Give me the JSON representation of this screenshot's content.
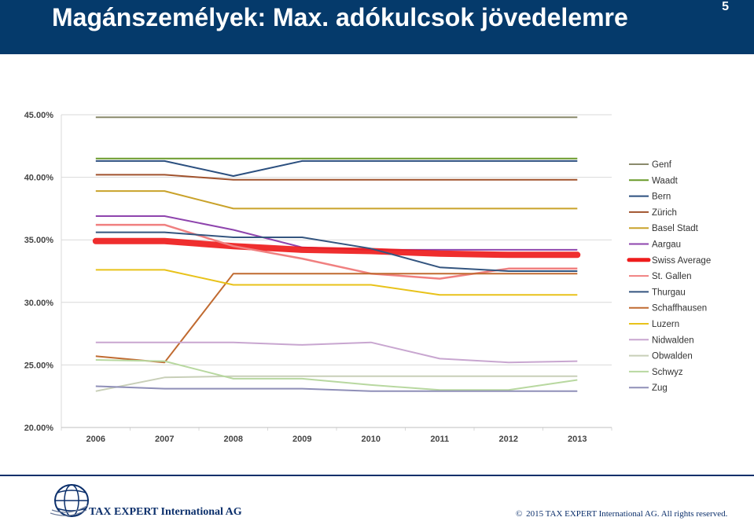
{
  "header": {
    "title": "Magánszemélyek: Max. adókulcsok jövedelemre",
    "page_number": "5"
  },
  "footer": {
    "company": "TAX EXPERT International AG",
    "copyright": "2015 TAX EXPERT International AG. All rights reserved.",
    "copyright_symbol": "©"
  },
  "colors": {
    "header_bg": "#053a6b",
    "footer_line": "#0b2f6b"
  },
  "chart_data": {
    "type": "line",
    "title": "",
    "xlabel": "",
    "ylabel": "",
    "x": [
      "2006",
      "2007",
      "2008",
      "2009",
      "2010",
      "2011",
      "2012",
      "2013"
    ],
    "ylim": [
      20,
      45
    ],
    "yticks": [
      "20.00%",
      "25.00%",
      "30.00%",
      "35.00%",
      "40.00%",
      "45.00%"
    ],
    "grid": "horizontal",
    "legend_position": "right",
    "series": [
      {
        "name": "Genf",
        "color": "#8a8a6c",
        "width": 2,
        "values": [
          44.8,
          44.8,
          44.8,
          44.8,
          44.8,
          44.8,
          44.8,
          44.8
        ]
      },
      {
        "name": "Waadt",
        "color": "#6a9a2a",
        "width": 2,
        "values": [
          41.5,
          41.5,
          41.5,
          41.5,
          41.5,
          41.5,
          41.5,
          41.5
        ]
      },
      {
        "name": "Bern",
        "color": "#2b4f7f",
        "width": 2,
        "values": [
          41.3,
          41.3,
          40.1,
          41.3,
          41.3,
          41.3,
          41.3,
          41.3
        ]
      },
      {
        "name": "Zürich",
        "color": "#a0522d",
        "width": 2,
        "values": [
          40.2,
          40.2,
          39.8,
          39.8,
          39.8,
          39.8,
          39.8,
          39.8
        ]
      },
      {
        "name": "Basel Stadt",
        "color": "#c9a22a",
        "width": 2,
        "values": [
          38.9,
          38.9,
          37.5,
          37.5,
          37.5,
          37.5,
          37.5,
          37.5
        ]
      },
      {
        "name": "Aargau",
        "color": "#8e44ad",
        "width": 2,
        "values": [
          36.9,
          36.9,
          35.8,
          34.4,
          34.2,
          34.2,
          34.2,
          34.2
        ]
      },
      {
        "name": "Swiss Average",
        "color": "#ee1c1c",
        "width": 8,
        "values": [
          34.9,
          34.9,
          34.5,
          34.2,
          34.1,
          33.9,
          33.8,
          33.8
        ]
      },
      {
        "name": "St. Gallen",
        "color": "#f08080",
        "width": 2.5,
        "values": [
          36.2,
          36.2,
          34.5,
          33.5,
          32.3,
          31.9,
          32.7,
          32.7
        ]
      },
      {
        "name": "Thurgau",
        "color": "#34557f",
        "width": 2,
        "values": [
          35.6,
          35.6,
          35.2,
          35.2,
          34.3,
          32.8,
          32.5,
          32.5
        ]
      },
      {
        "name": "Schaffhausen",
        "color": "#c06a30",
        "width": 2,
        "values": [
          25.7,
          25.2,
          32.3,
          32.3,
          32.3,
          32.3,
          32.3,
          32.3
        ]
      },
      {
        "name": "Luzern",
        "color": "#e8c21a",
        "width": 2,
        "values": [
          32.6,
          32.6,
          31.4,
          31.4,
          31.4,
          30.6,
          30.6,
          30.6
        ]
      },
      {
        "name": "Nidwalden",
        "color": "#c8a6d0",
        "width": 2,
        "values": [
          26.8,
          26.8,
          26.8,
          26.6,
          26.8,
          25.5,
          25.2,
          25.3
        ]
      },
      {
        "name": "Obwalden",
        "color": "#c8cfb8",
        "width": 2,
        "values": [
          22.9,
          24.0,
          24.1,
          24.1,
          24.1,
          24.1,
          24.1,
          24.1
        ]
      },
      {
        "name": "Schwyz",
        "color": "#b8d8a0",
        "width": 2,
        "values": [
          25.4,
          25.3,
          23.9,
          23.9,
          23.4,
          23.0,
          23.0,
          23.8
        ]
      },
      {
        "name": "Zug",
        "color": "#8f8fb8",
        "width": 2,
        "values": [
          23.3,
          23.1,
          23.1,
          23.1,
          22.9,
          22.9,
          22.9,
          22.9
        ]
      }
    ]
  }
}
